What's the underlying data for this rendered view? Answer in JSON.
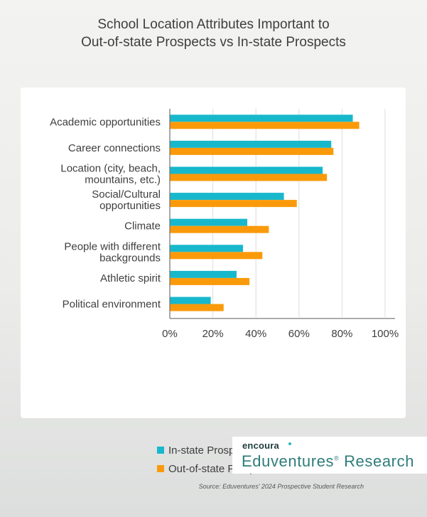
{
  "title_lines": [
    "School Location Attributes Important to",
    "Out-of-state Prospects vs In-state Prospects"
  ],
  "chart_data": {
    "type": "bar",
    "orientation": "horizontal",
    "categories": [
      [
        "Academic opportunities"
      ],
      [
        "Career connections"
      ],
      [
        "Location (city, beach,",
        "mountains, etc.)"
      ],
      [
        "Social/Cultural",
        "opportunities"
      ],
      [
        "Climate"
      ],
      [
        "People with different",
        "backgrounds"
      ],
      [
        "Athletic spirit"
      ],
      [
        "Political environment"
      ]
    ],
    "series": [
      {
        "name": "In-state Prospects",
        "color": "#18b8cc",
        "values": [
          85,
          75,
          71,
          53,
          36,
          34,
          31,
          19
        ]
      },
      {
        "name": "Out-of-state Prospects",
        "color": "#fa9a0a",
        "values": [
          88,
          76,
          73,
          59,
          46,
          43,
          37,
          25
        ]
      }
    ],
    "xlim": [
      0,
      100
    ],
    "xticks": [
      "0%",
      "20%",
      "40%",
      "60%",
      "80%",
      "100%"
    ],
    "grid": true,
    "legend": "bottom"
  },
  "source": "Source: Eduventures' 2024 Prospective Student Research",
  "logo": {
    "small": "encoura",
    "main": "Eduventures",
    "reg": "®",
    "suffix": " Research"
  }
}
